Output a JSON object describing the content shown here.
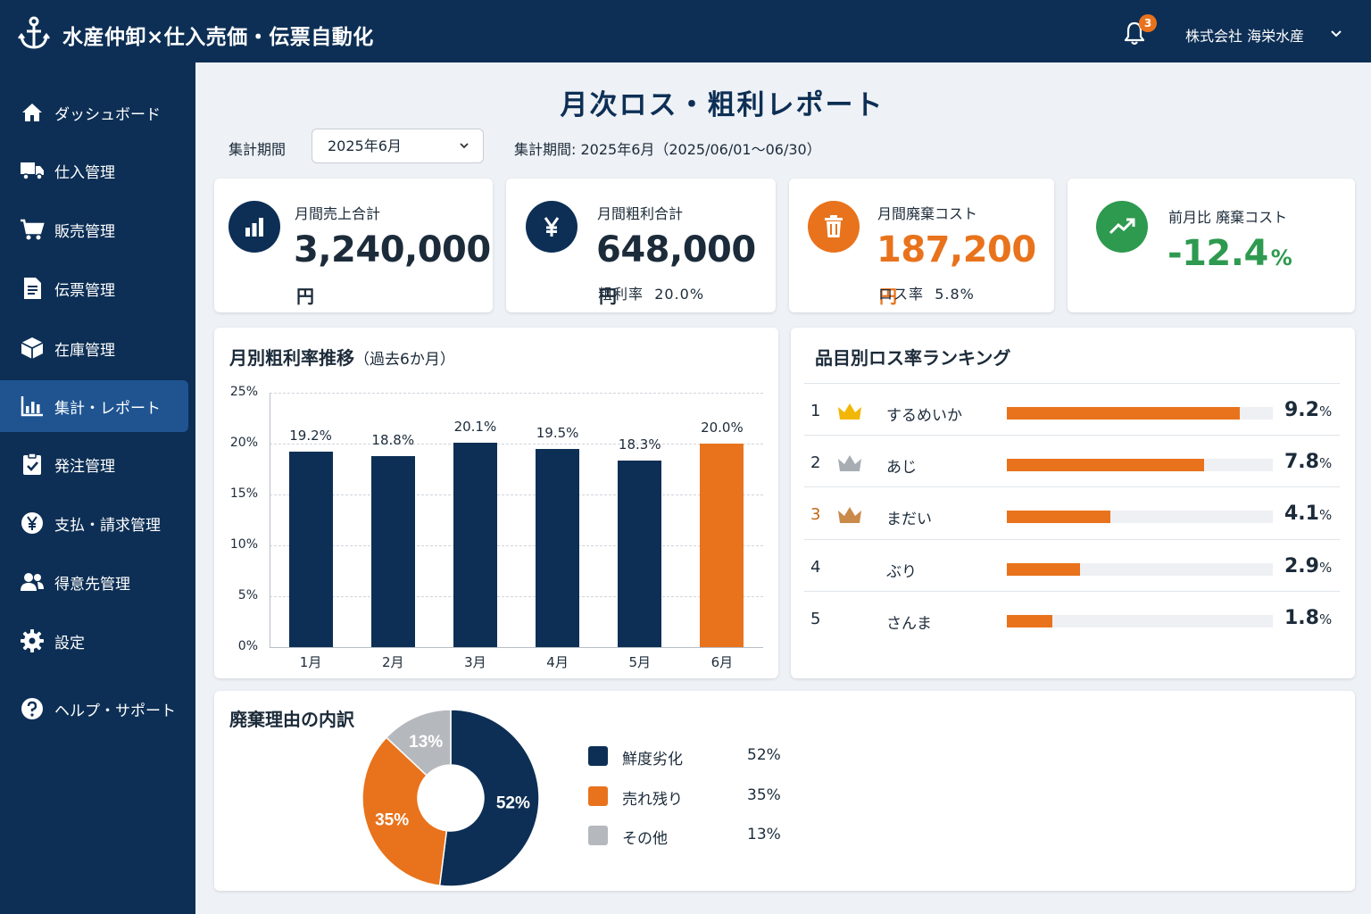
{
  "header": {
    "app_title": "水産仲卸×仕入売価・伝票自動化",
    "notification_count": "3",
    "company_name": "株式会社 海栄水産"
  },
  "sidebar": {
    "items": [
      {
        "label": "ダッシュボード",
        "icon": "home-icon"
      },
      {
        "label": "仕入管理",
        "icon": "truck-icon"
      },
      {
        "label": "販売管理",
        "icon": "cart-icon"
      },
      {
        "label": "伝票管理",
        "icon": "document-icon"
      },
      {
        "label": "在庫管理",
        "icon": "box-icon"
      },
      {
        "label": "集計・レポート",
        "icon": "bar-chart-icon",
        "active": true
      },
      {
        "label": "発注管理",
        "icon": "clipboard-check-icon"
      },
      {
        "label": "支払・請求管理",
        "icon": "yen-circle-icon"
      },
      {
        "label": "得意先管理",
        "icon": "users-icon"
      },
      {
        "label": "設定",
        "icon": "gear-icon"
      },
      {
        "label": "ヘルプ・サポート",
        "icon": "help-icon"
      }
    ]
  },
  "page": {
    "title": "月次ロス・粗利レポート",
    "period_label": "集計期間",
    "period_selected": "2025年6月",
    "period_text": "集計期間: 2025年6月（2025/06/01～06/30）"
  },
  "kpis": {
    "sales": {
      "label": "月間売上合計",
      "value": "3,240,000",
      "unit": "円"
    },
    "gross_profit": {
      "label": "月間粗利合計",
      "value": "648,000",
      "unit": "円",
      "sub_label": "粗利率",
      "sub_value": "20.0%"
    },
    "waste_cost": {
      "label": "月間廃棄コスト",
      "value": "187,200",
      "unit": "円",
      "sub_label": "ロス率",
      "sub_value": "5.8%"
    },
    "mom_waste": {
      "label": "前月比 廃棄コスト",
      "value": "-12.4",
      "unit": "%"
    }
  },
  "colors": {
    "navy": "#0d2f55",
    "accent_orange": "#e8731c",
    "positive_green": "#2e9a4f",
    "gray": "#b5b8bd"
  },
  "margin_chart": {
    "title": "月別粗利率推移",
    "subtitle": "（過去6か月）"
  },
  "ranking": {
    "title": "品目別ロス率ランキング",
    "items": [
      {
        "rank": "1",
        "name": "するめいか",
        "value": "9.2",
        "unit": "%",
        "rate": 9.2,
        "crown": "gold"
      },
      {
        "rank": "2",
        "name": "あじ",
        "value": "7.8",
        "unit": "%",
        "rate": 7.8,
        "crown": "silver"
      },
      {
        "rank": "3",
        "name": "まだい",
        "value": "4.1",
        "unit": "%",
        "rate": 4.1,
        "crown": "bronze"
      },
      {
        "rank": "4",
        "name": "ぶり",
        "value": "2.9",
        "unit": "%",
        "rate": 2.9,
        "crown": "none"
      },
      {
        "rank": "5",
        "name": "さんま",
        "value": "1.8",
        "unit": "%",
        "rate": 1.8,
        "crown": "none"
      }
    ]
  },
  "waste_reasons": {
    "title": "廃棄理由の内訳"
  },
  "chart_data": [
    {
      "type": "bar",
      "title": "月別粗利率推移（過去6か月）",
      "categories": [
        "1月",
        "2月",
        "3月",
        "4月",
        "5月",
        "6月"
      ],
      "values": [
        19.2,
        18.8,
        20.1,
        19.5,
        18.3,
        20.0
      ],
      "data_labels": [
        "19.2%",
        "18.8%",
        "20.1%",
        "19.5%",
        "18.3%",
        "20.0%"
      ],
      "highlight_index": 5,
      "ylim": [
        0,
        25
      ],
      "yticks": [
        "0%",
        "5%",
        "10%",
        "15%",
        "20%",
        "25%"
      ],
      "grid": true
    },
    {
      "type": "pie",
      "title": "廃棄理由の内訳",
      "labels": [
        "鮮度劣化",
        "売れ残り",
        "その他"
      ],
      "values": [
        52,
        35,
        13
      ],
      "value_labels": [
        "52%",
        "35%",
        "13%"
      ],
      "colors": [
        "#0d2f55",
        "#e8731c",
        "#b5b8bd"
      ],
      "legend": "right"
    }
  ]
}
